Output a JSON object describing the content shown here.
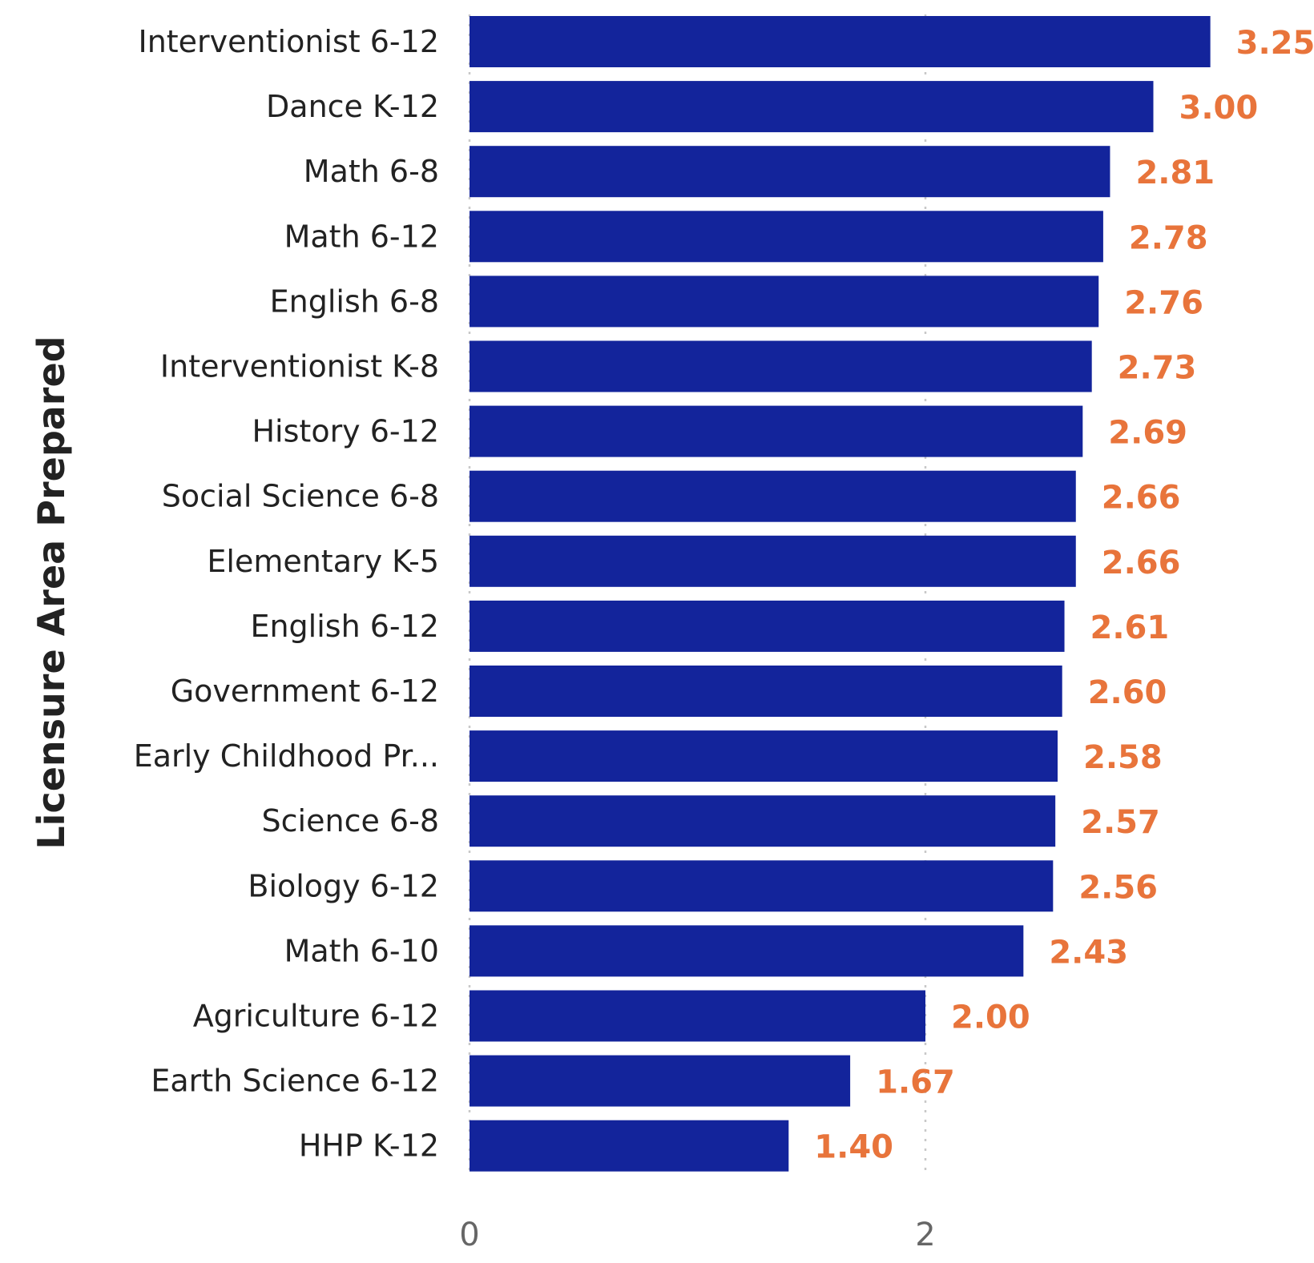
{
  "chart_data": {
    "type": "bar",
    "orientation": "horizontal",
    "title": "",
    "xlabel": "",
    "ylabel": "Licensure Area Prepared",
    "categories": [
      "Interventionist 6-12",
      "Dance K-12",
      "Math 6-8",
      "Math 6-12",
      "English 6-8",
      "Interventionist K-8",
      "History 6-12",
      "Social Science 6-8",
      "Elementary K-5",
      "English 6-12",
      "Government 6-12",
      "Early Childhood Pr...",
      "Science 6-8",
      "Biology 6-12",
      "Math 6-10",
      "Agriculture 6-12",
      "Earth Science 6-12",
      "HHP K-12"
    ],
    "values": [
      3.25,
      3.0,
      2.81,
      2.78,
      2.76,
      2.73,
      2.69,
      2.66,
      2.66,
      2.61,
      2.6,
      2.58,
      2.57,
      2.56,
      2.43,
      2.0,
      1.67,
      1.4
    ],
    "value_labels": [
      "3.25",
      "3.00",
      "2.81",
      "2.78",
      "2.76",
      "2.73",
      "2.69",
      "2.66",
      "2.66",
      "2.61",
      "2.60",
      "2.58",
      "2.57",
      "2.56",
      "2.43",
      "2.00",
      "1.67",
      "1.40"
    ],
    "x_ticks": [
      {
        "value": 0,
        "label": "0"
      },
      {
        "value": 2,
        "label": "2"
      }
    ],
    "xlim": [
      0,
      3.77
    ],
    "grid": true,
    "bar_color": "#13249B",
    "label_color": "#E8743B",
    "grid_color": "#C8C8C8"
  }
}
